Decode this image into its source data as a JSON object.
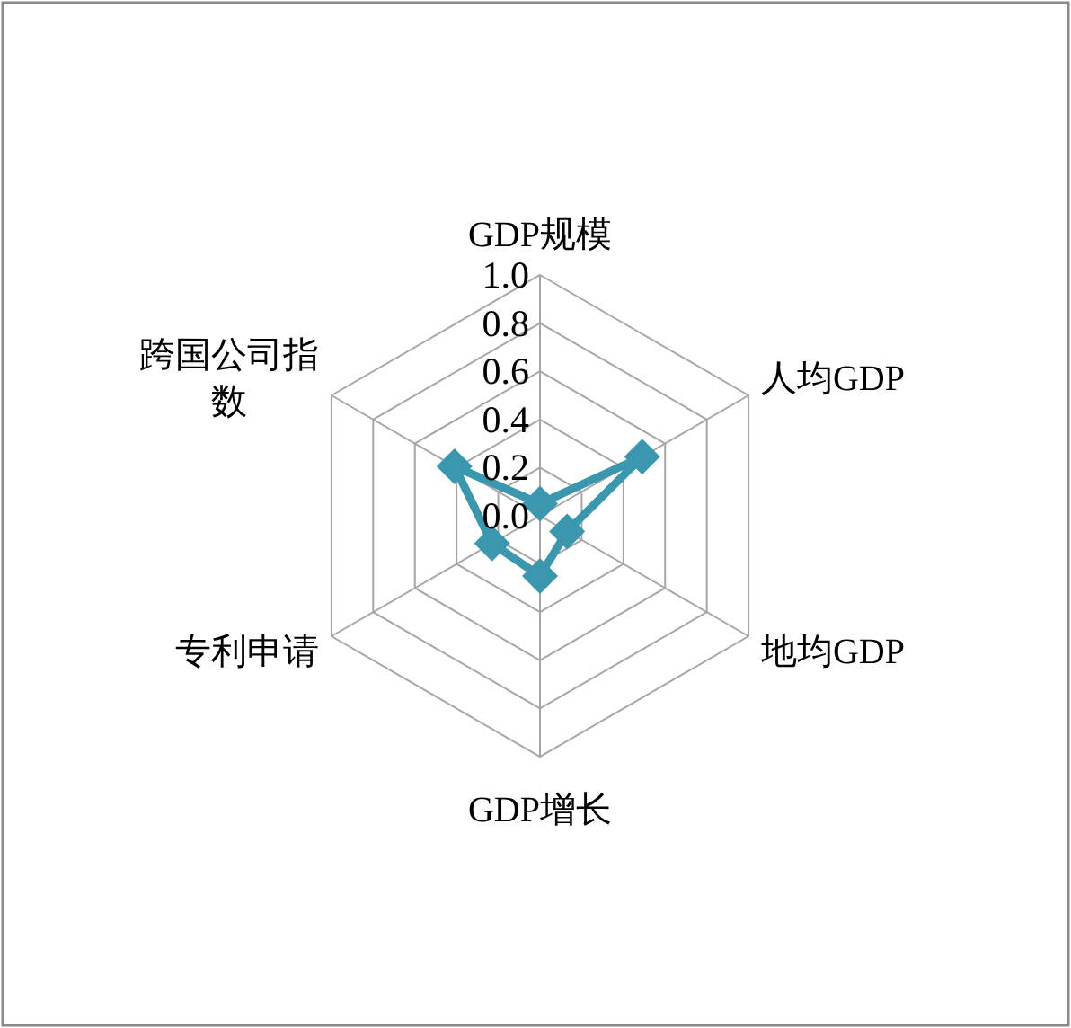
{
  "chart_data": {
    "type": "radar",
    "categories": [
      "GDP规模",
      "人均GDP",
      "地均GDP",
      "GDP增长",
      "专利申请",
      "跨国公司指数"
    ],
    "series": [
      {
        "color": "#3a97ad",
        "values": [
          0.05,
          0.49,
          0.13,
          0.25,
          0.23,
          0.41
        ]
      }
    ],
    "ylim": [
      0,
      1
    ],
    "yticks": [
      {
        "value": 0,
        "label": "0.0"
      },
      {
        "value": 0.2,
        "label": "0.2"
      },
      {
        "value": 0.4,
        "label": "0.4"
      },
      {
        "value": 0.6,
        "label": "0.6"
      },
      {
        "value": 0.8,
        "label": "0.8"
      },
      {
        "value": 1,
        "label": "1.0"
      }
    ],
    "grid": true,
    "marker": "diamond"
  }
}
